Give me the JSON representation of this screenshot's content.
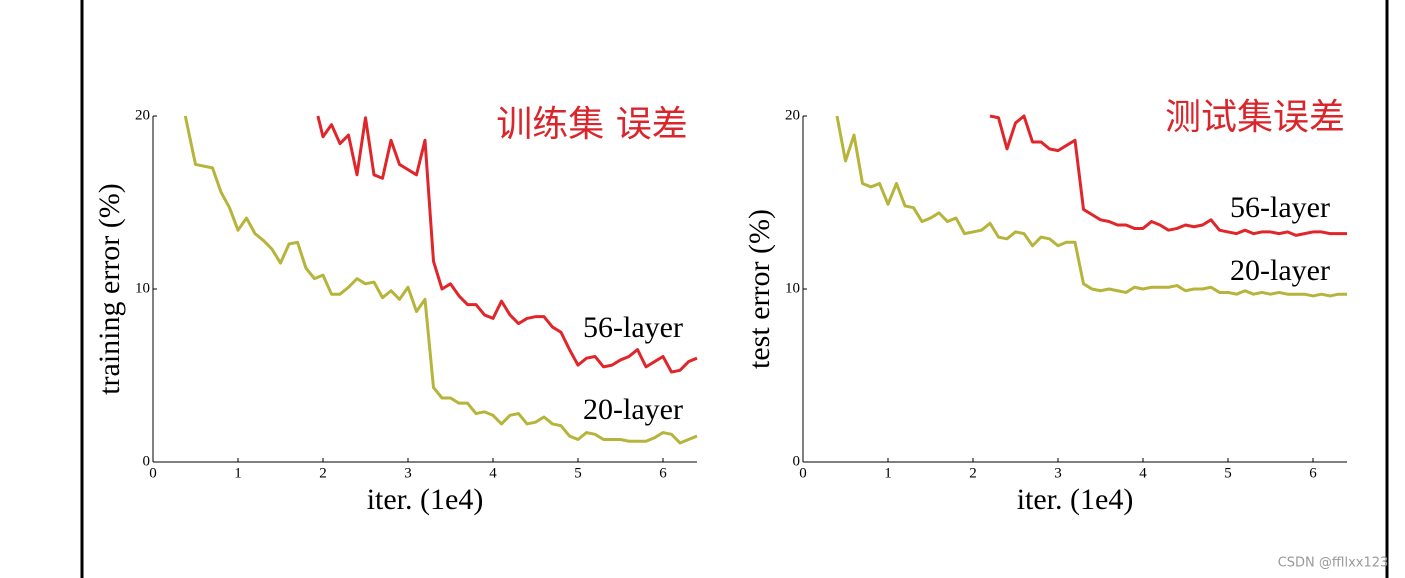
{
  "chart_data": [
    {
      "type": "line",
      "xlabel": "iter. (1e4)",
      "ylabel": "training error (%)",
      "annotation": "训练集 误差",
      "annotation_color": "#d9262c",
      "xlim": [
        0,
        6.4
      ],
      "ylim": [
        0,
        20
      ],
      "xticks": [
        0,
        1,
        2,
        3,
        4,
        5,
        6
      ],
      "yticks": [
        0,
        10,
        20
      ],
      "series": [
        {
          "name": "56-layer",
          "color": "#e0262a",
          "x": [
            1.94,
            2.0,
            2.1,
            2.2,
            2.3,
            2.4,
            2.5,
            2.6,
            2.7,
            2.8,
            2.9,
            3.0,
            3.1,
            3.2,
            3.3,
            3.4,
            3.5,
            3.6,
            3.7,
            3.8,
            3.9,
            4.0,
            4.1,
            4.2,
            4.3,
            4.4,
            4.5,
            4.6,
            4.7,
            4.8,
            4.9,
            5.0,
            5.1,
            5.2,
            5.3,
            5.4,
            5.5,
            5.6,
            5.7,
            5.8,
            5.9,
            6.0,
            6.1,
            6.2,
            6.3,
            6.4
          ],
          "values": [
            20,
            18.8,
            19.5,
            18.4,
            18.9,
            16.6,
            19.9,
            16.6,
            16.4,
            18.6,
            17.2,
            16.9,
            16.6,
            18.6,
            11.6,
            10.0,
            10.3,
            9.6,
            9.1,
            9.1,
            8.5,
            8.3,
            9.3,
            8.5,
            8.0,
            8.3,
            8.4,
            8.4,
            7.8,
            7.5,
            6.5,
            5.6,
            6.0,
            6.1,
            5.5,
            5.6,
            5.9,
            6.1,
            6.5,
            5.5,
            5.8,
            6.1,
            5.2,
            5.3,
            5.8,
            6.0
          ]
        },
        {
          "name": "20-layer",
          "color": "#b6b43a",
          "x": [
            0.38,
            0.5,
            0.7,
            0.8,
            0.9,
            1.0,
            1.1,
            1.2,
            1.3,
            1.4,
            1.5,
            1.6,
            1.7,
            1.8,
            1.9,
            2.0,
            2.1,
            2.2,
            2.3,
            2.4,
            2.5,
            2.6,
            2.7,
            2.8,
            2.9,
            3.0,
            3.1,
            3.2,
            3.3,
            3.4,
            3.5,
            3.6,
            3.7,
            3.8,
            3.9,
            4.0,
            4.1,
            4.2,
            4.3,
            4.4,
            4.5,
            4.6,
            4.7,
            4.8,
            4.9,
            5.0,
            5.1,
            5.2,
            5.3,
            5.4,
            5.5,
            5.6,
            5.7,
            5.8,
            5.9,
            6.0,
            6.1,
            6.2,
            6.3,
            6.4
          ],
          "values": [
            20,
            17.2,
            17.0,
            15.6,
            14.7,
            13.4,
            14.1,
            13.2,
            12.8,
            12.3,
            11.5,
            12.6,
            12.7,
            11.2,
            10.6,
            10.8,
            9.7,
            9.7,
            10.1,
            10.6,
            10.3,
            10.4,
            9.5,
            9.9,
            9.4,
            10.1,
            8.7,
            9.4,
            4.3,
            3.7,
            3.7,
            3.4,
            3.4,
            2.8,
            2.9,
            2.7,
            2.2,
            2.7,
            2.8,
            2.2,
            2.3,
            2.6,
            2.2,
            2.1,
            1.5,
            1.3,
            1.7,
            1.6,
            1.3,
            1.3,
            1.3,
            1.2,
            1.2,
            1.2,
            1.4,
            1.7,
            1.6,
            1.1,
            1.3,
            1.5
          ]
        }
      ]
    },
    {
      "type": "line",
      "xlabel": "iter. (1e4)",
      "ylabel": "test error (%)",
      "annotation": "测试集误差",
      "annotation_color": "#d9262c",
      "xlim": [
        0,
        6.4
      ],
      "ylim": [
        0,
        20
      ],
      "xticks": [
        0,
        1,
        2,
        3,
        4,
        5,
        6
      ],
      "yticks": [
        0,
        10,
        20
      ],
      "series": [
        {
          "name": "56-layer",
          "color": "#e0262a",
          "x": [
            2.2,
            2.3,
            2.4,
            2.5,
            2.6,
            2.7,
            2.8,
            2.9,
            3.0,
            3.1,
            3.2,
            3.3,
            3.4,
            3.5,
            3.6,
            3.7,
            3.8,
            3.9,
            4.0,
            4.1,
            4.2,
            4.3,
            4.4,
            4.5,
            4.6,
            4.7,
            4.8,
            4.9,
            5.0,
            5.1,
            5.2,
            5.3,
            5.4,
            5.5,
            5.6,
            5.7,
            5.8,
            5.9,
            6.0,
            6.1,
            6.2,
            6.3,
            6.4
          ],
          "values": [
            20,
            19.9,
            18.1,
            19.6,
            20.0,
            18.5,
            18.5,
            18.1,
            18.0,
            18.3,
            18.6,
            14.6,
            14.3,
            14.0,
            13.9,
            13.7,
            13.7,
            13.5,
            13.5,
            13.9,
            13.7,
            13.4,
            13.5,
            13.7,
            13.6,
            13.7,
            14.0,
            13.4,
            13.3,
            13.2,
            13.4,
            13.2,
            13.3,
            13.3,
            13.2,
            13.3,
            13.1,
            13.2,
            13.3,
            13.3,
            13.2,
            13.2,
            13.2
          ]
        },
        {
          "name": "20-layer",
          "color": "#b6b43a",
          "x": [
            0.4,
            0.5,
            0.6,
            0.7,
            0.8,
            0.9,
            1.0,
            1.1,
            1.2,
            1.3,
            1.4,
            1.5,
            1.6,
            1.7,
            1.8,
            1.9,
            2.0,
            2.1,
            2.2,
            2.3,
            2.4,
            2.5,
            2.6,
            2.7,
            2.8,
            2.9,
            3.0,
            3.1,
            3.2,
            3.3,
            3.4,
            3.5,
            3.6,
            3.7,
            3.8,
            3.9,
            4.0,
            4.1,
            4.2,
            4.3,
            4.4,
            4.5,
            4.6,
            4.7,
            4.8,
            4.9,
            5.0,
            5.1,
            5.2,
            5.3,
            5.4,
            5.5,
            5.6,
            5.7,
            5.8,
            5.9,
            6.0,
            6.1,
            6.2,
            6.3,
            6.4
          ],
          "values": [
            20,
            17.4,
            18.9,
            16.1,
            15.9,
            16.1,
            14.9,
            16.1,
            14.8,
            14.7,
            13.9,
            14.1,
            14.4,
            13.9,
            14.1,
            13.2,
            13.3,
            13.4,
            13.8,
            13.0,
            12.9,
            13.3,
            13.2,
            12.5,
            13.0,
            12.9,
            12.5,
            12.7,
            12.7,
            10.3,
            10.0,
            9.9,
            10.0,
            9.9,
            9.8,
            10.1,
            10.0,
            10.1,
            10.1,
            10.1,
            10.2,
            9.9,
            10.0,
            10.0,
            10.1,
            9.8,
            9.8,
            9.7,
            9.9,
            9.7,
            9.8,
            9.7,
            9.8,
            9.7,
            9.7,
            9.7,
            9.6,
            9.7,
            9.6,
            9.7,
            9.7
          ]
        }
      ]
    }
  ],
  "watermark": "CSDN @ffllxx123"
}
